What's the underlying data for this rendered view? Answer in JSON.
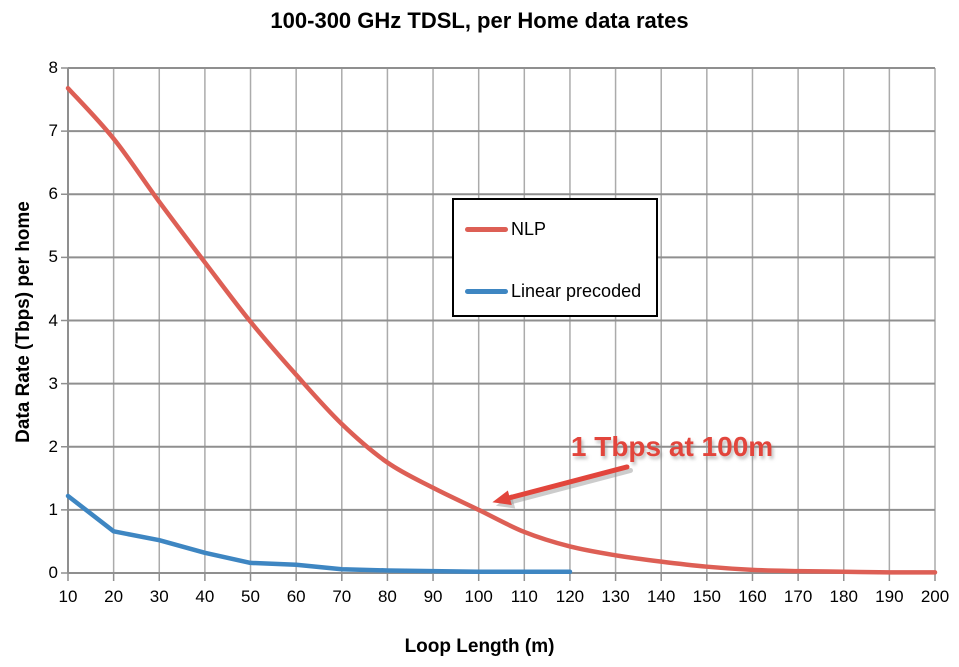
{
  "chart_data": {
    "type": "line",
    "title": "100-300 GHz TDSL, per Home data rates",
    "xlabel": "Loop Length (m)",
    "ylabel": "Data Rate (Tbps) per home",
    "xlim": [
      10,
      200
    ],
    "ylim": [
      0,
      8
    ],
    "x_ticks": [
      10,
      20,
      30,
      40,
      50,
      60,
      70,
      80,
      90,
      100,
      110,
      120,
      130,
      140,
      150,
      160,
      170,
      180,
      190,
      200
    ],
    "y_ticks": [
      0,
      1,
      2,
      3,
      4,
      5,
      6,
      7,
      8
    ],
    "grid": true,
    "legend": {
      "position": "inside-upper-center",
      "border_color": "#000000",
      "background": "#ffffff"
    },
    "series": [
      {
        "name": "NLP",
        "color": "#DD5F55",
        "style": "smooth",
        "x": [
          10,
          20,
          30,
          40,
          50,
          60,
          70,
          80,
          90,
          100,
          110,
          120,
          130,
          140,
          150,
          160,
          170,
          180,
          190,
          200
        ],
        "values": [
          7.68,
          6.88,
          5.88,
          4.92,
          3.98,
          3.14,
          2.36,
          1.75,
          1.35,
          1.0,
          0.65,
          0.42,
          0.28,
          0.18,
          0.1,
          0.05,
          0.03,
          0.02,
          0.01,
          0.01
        ]
      },
      {
        "name": "Linear precoded",
        "color": "#3E86C2",
        "style": "polyline",
        "x": [
          10,
          20,
          30,
          40,
          50,
          60,
          70,
          80,
          90,
          100,
          110,
          120
        ],
        "values": [
          1.22,
          0.66,
          0.52,
          0.32,
          0.16,
          0.13,
          0.06,
          0.04,
          0.03,
          0.02,
          0.02,
          0.02
        ]
      }
    ],
    "annotation": {
      "text": "1 Tbps at 100m",
      "color": "#E2453C",
      "text_at": {
        "x": 120.2,
        "y": 2.0
      },
      "arrow_from": {
        "x": 132.5,
        "y": 1.68
      },
      "arrow_to": {
        "x": 103.0,
        "y": 1.12
      }
    },
    "colors": {
      "grid_horizontal": "#8F8F8F",
      "grid_vertical": "#ABABAB",
      "axis": "#8F8F8F",
      "text": "#000000"
    }
  }
}
